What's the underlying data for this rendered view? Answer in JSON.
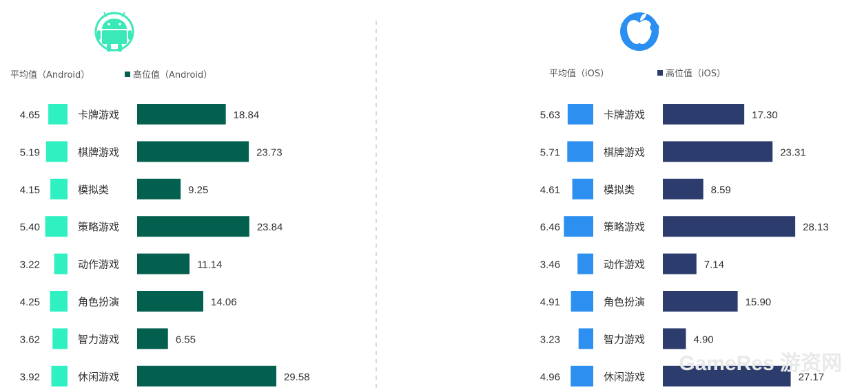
{
  "chart_data": [
    {
      "type": "bar",
      "orientation": "horizontal",
      "platform_icon": "android-icon",
      "categories": [
        "卡牌游戏",
        "棋牌游戏",
        "模拟类",
        "策略游戏",
        "动作游戏",
        "角色扮演",
        "智力游戏",
        "休闲游戏"
      ],
      "series": [
        {
          "name": "平均值（Android）",
          "values": [
            4.65,
            5.19,
            4.15,
            5.4,
            3.22,
            4.25,
            3.62,
            3.92
          ],
          "labels": [
            "4.65",
            "5.19",
            "4.15",
            "5.40",
            "3.22",
            "4.25",
            "3.62",
            "3.92"
          ],
          "color": "#2ff0c0"
        },
        {
          "name": "高位值（Android）",
          "values": [
            18.84,
            23.73,
            9.25,
            23.84,
            11.14,
            14.06,
            6.55,
            29.58
          ],
          "labels": [
            "18.84",
            "23.73",
            "9.25",
            "23.84",
            "11.14",
            "14.06",
            "6.55",
            "29.58"
          ],
          "color": "#04604e"
        }
      ],
      "legend_position": "top-left",
      "grid": false
    },
    {
      "type": "bar",
      "orientation": "horizontal",
      "platform_icon": "apple-icon",
      "categories": [
        "卡牌游戏",
        "棋牌游戏",
        "模拟类",
        "策略游戏",
        "动作游戏",
        "角色扮演",
        "智力游戏",
        "休闲游戏"
      ],
      "series": [
        {
          "name": "平均值（iOS）",
          "values": [
            5.63,
            5.71,
            4.61,
            6.46,
            3.46,
            4.91,
            3.23,
            4.96
          ],
          "labels": [
            "5.63",
            "5.71",
            "4.61",
            "6.46",
            "3.46",
            "4.91",
            "3.23",
            "4.96"
          ],
          "color": "#2d8ff0"
        },
        {
          "name": "高位值（iOS）",
          "values": [
            17.3,
            23.31,
            8.59,
            28.13,
            7.14,
            15.9,
            4.9,
            27.17
          ],
          "labels": [
            "17.30",
            "23.31",
            "8.59",
            "28.13",
            "7.14",
            "15.90",
            "4.90",
            "27.17"
          ],
          "color": "#2c3c6c"
        }
      ],
      "legend_position": "top-left",
      "grid": false
    }
  ],
  "colors": {
    "android_icon": "#3ae8b8",
    "apple_icon": "#2a8ff0",
    "divider": "#cccccc"
  },
  "watermark": "GameRes 游资网"
}
